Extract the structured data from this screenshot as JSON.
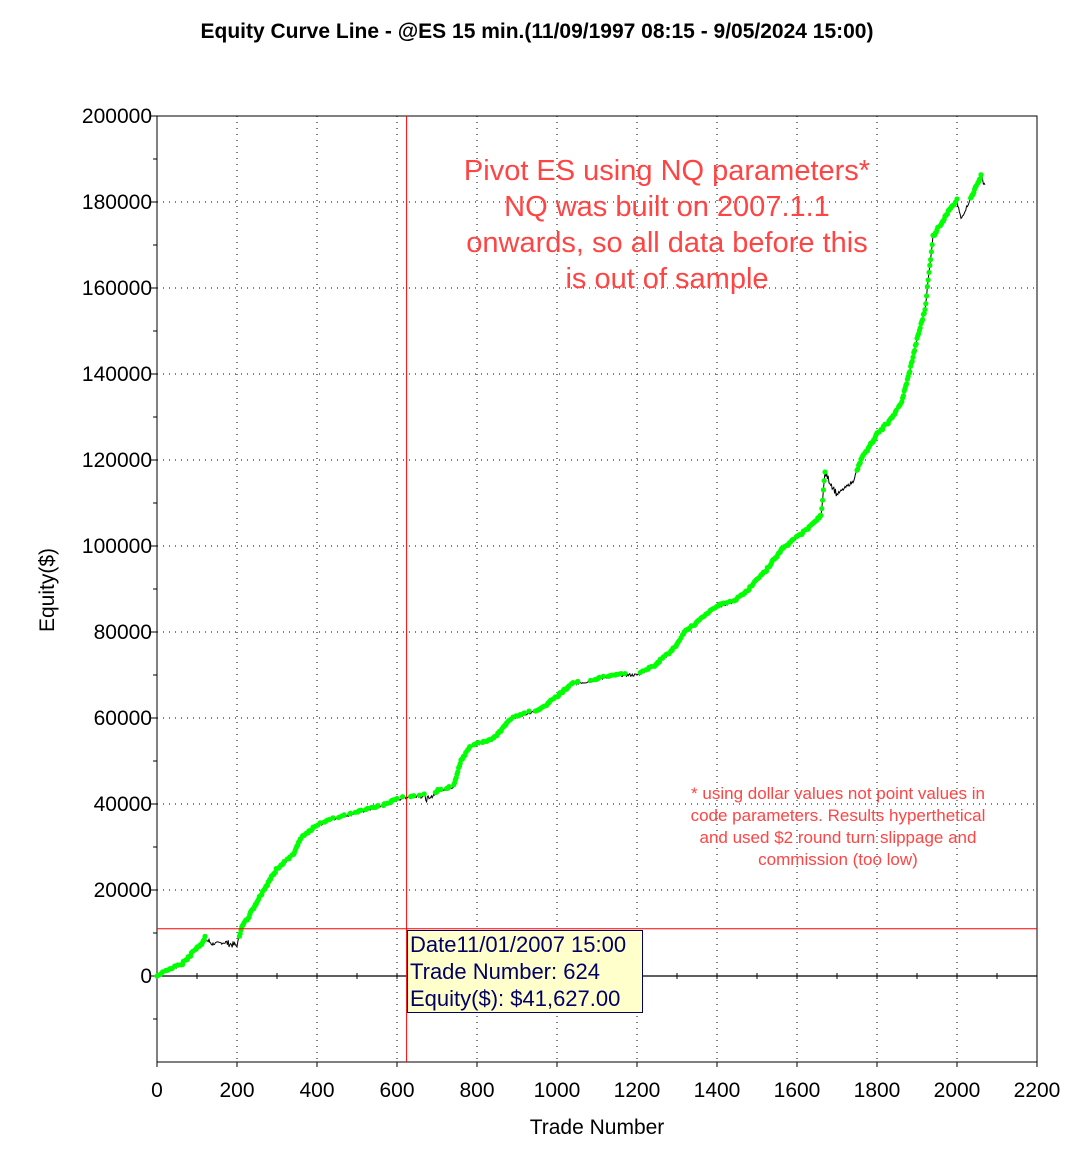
{
  "chart_data": {
    "type": "line",
    "title": "Equity Curve Line - @ES 15 min.(11/09/1997 08:15 - 9/05/2024 15:00)",
    "xlabel": "Trade Number",
    "ylabel": "Equity($)",
    "xlim": [
      0,
      2200
    ],
    "ylim": [
      -20000,
      200000
    ],
    "xticks": [
      "0",
      "200",
      "400",
      "600",
      "800",
      "1000",
      "1200",
      "1400",
      "1600",
      "1800",
      "2000",
      "2200"
    ],
    "yticks": [
      "0",
      "20000",
      "40000",
      "60000",
      "80000",
      "100000",
      "120000",
      "140000",
      "160000",
      "180000",
      "200000"
    ],
    "grid": true,
    "series": [
      {
        "name": "Equity",
        "color": "#000000",
        "new_high_color": "#00ff00",
        "x": [
          0,
          30,
          60,
          80,
          120,
          140,
          170,
          200,
          210,
          230,
          260,
          280,
          300,
          340,
          360,
          400,
          440,
          480,
          520,
          560,
          600,
          624,
          660,
          680,
          700,
          740,
          760,
          780,
          800,
          840,
          860,
          880,
          920,
          960,
          1000,
          1040,
          1080,
          1120,
          1160,
          1200,
          1240,
          1280,
          1300,
          1320,
          1360,
          1400,
          1440,
          1480,
          1520,
          1560,
          1600,
          1640,
          1660,
          1670,
          1700,
          1740,
          1760,
          1800,
          1840,
          1860,
          1880,
          1900,
          1920,
          1940,
          1960,
          1980,
          2000,
          2010,
          2020,
          2040,
          2060,
          2070
        ],
        "y": [
          0,
          1500,
          2500,
          4500,
          8500,
          7500,
          7800,
          7000,
          11000,
          14000,
          19000,
          22000,
          25000,
          28000,
          32000,
          35000,
          36500,
          37500,
          38500,
          39500,
          41000,
          41627,
          42000,
          41000,
          43000,
          44000,
          50000,
          53000,
          54000,
          55000,
          57000,
          59500,
          61000,
          62000,
          65000,
          68000,
          68500,
          69500,
          70000,
          70000,
          72000,
          75000,
          77000,
          80000,
          83000,
          86000,
          87000,
          90000,
          94000,
          99000,
          102000,
          105000,
          107000,
          117000,
          112000,
          115000,
          120000,
          126000,
          130000,
          133000,
          140000,
          148000,
          155000,
          172000,
          175000,
          178000,
          180000,
          176000,
          178000,
          182000,
          186000,
          184000
        ]
      }
    ],
    "annotations": {
      "main_note": [
        "Pivot ES using NQ parameters*",
        "NQ was built on 2007.1.1",
        "onwards, so all data before this",
        "is out of sample"
      ],
      "footnote": [
        "* using dollar values not point values in",
        "code parameters. Results hyperthetical",
        "and used $2 round turn slippage and",
        "commission (too low)"
      ]
    },
    "cursor": {
      "trade": 624,
      "equity_level": 11000
    },
    "tooltip": {
      "date": "Date11/01/2007 15:00",
      "trade": "Trade Number: 624",
      "equity": "Equity($): $41,627.00"
    }
  }
}
